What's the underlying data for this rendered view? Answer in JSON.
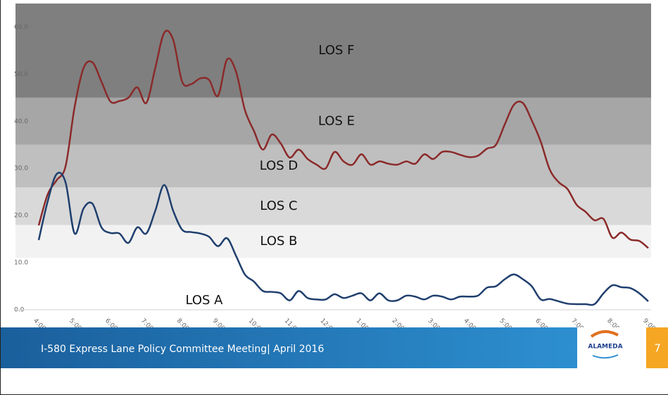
{
  "chart_data": {
    "type": "line",
    "categories": [
      "4:00:00",
      null,
      null,
      null,
      "5:00:00",
      null,
      null,
      null,
      "6:00:00",
      null,
      null,
      null,
      "7:00:00",
      null,
      null,
      null,
      "8:00:00",
      null,
      null,
      null,
      "9:00:00",
      null,
      null,
      null,
      "10:00:00",
      null,
      null,
      null,
      "11:00:00",
      null,
      null,
      null,
      "12:00:00",
      null,
      null,
      null,
      "1:00:00",
      null,
      null,
      null,
      "2:00:00",
      null,
      null,
      null,
      "3:00:00",
      null,
      null,
      null,
      "4:00:00",
      null,
      null,
      null,
      "5:00:00",
      null,
      null,
      null,
      "6:00:00",
      null,
      null,
      null,
      "7:00:00",
      null,
      null,
      null,
      "8:00:00",
      null,
      null,
      null,
      "9:00:00"
    ],
    "series": [
      {
        "color": "#8b2a2a",
        "values": [
          17.9,
          24.5,
          27.5,
          30.5,
          43,
          51.3,
          52.5,
          48.4,
          44.2,
          44.3,
          45,
          47.2,
          43.9,
          51.3,
          58.8,
          57.3,
          48.4,
          47.9,
          49.1,
          48.8,
          45.4,
          53.1,
          50.6,
          42.4,
          38,
          34,
          37.2,
          35.3,
          32.3,
          34,
          32,
          30.8,
          30,
          33.5,
          31.5,
          30.8,
          33,
          30.8,
          31.5,
          31,
          30.8,
          31.5,
          31,
          33,
          32,
          33.5,
          33.5,
          32.9,
          32.4,
          32.7,
          34.2,
          35,
          39.4,
          43.5,
          43.9,
          40.2,
          35.7,
          29.8,
          27.1,
          25.6,
          22.3,
          20.8,
          19,
          19.3,
          15.3,
          16.4,
          14.9,
          14.6,
          13.1
        ]
      },
      {
        "color": "#1f3f6e",
        "values": [
          14.8,
          23,
          28.8,
          27,
          16.2,
          21.5,
          22.5,
          17.5,
          16.3,
          16.2,
          14.2,
          17.5,
          16.2,
          21,
          26.5,
          21,
          17,
          16.5,
          16.2,
          15.5,
          13.5,
          15.2,
          11.5,
          7.5,
          6,
          4,
          3.8,
          3.5,
          2,
          4,
          2.5,
          2.2,
          2.2,
          3.3,
          2.5,
          3,
          3.5,
          2,
          3.5,
          2,
          2,
          3,
          2.8,
          2.2,
          3,
          2.8,
          2.2,
          2.8,
          2.8,
          3,
          4.7,
          5,
          6.5,
          7.5,
          6.5,
          5,
          2.2,
          2.3,
          1.8,
          1.3,
          1.2,
          1.2,
          1.2,
          3.5,
          5.2,
          4.8,
          4.6,
          3.5,
          1.8
        ]
      }
    ],
    "ylim": [
      0,
      65
    ],
    "yticks": [
      {
        "value": 0,
        "label": "0.0"
      },
      {
        "value": 10,
        "label": "10.0"
      },
      {
        "value": 20,
        "label": "20.0"
      },
      {
        "value": 30,
        "label": "30.0"
      },
      {
        "value": 40,
        "label": "40.0"
      },
      {
        "value": 50,
        "label": "50.0"
      },
      {
        "value": 60,
        "label": "60.0"
      }
    ],
    "bands": [
      {
        "label": "LOS A",
        "from": 0,
        "to": 11,
        "color": "#ffffff"
      },
      {
        "label": "LOS B",
        "from": 11,
        "to": 18,
        "color": "#f2f2f2"
      },
      {
        "label": "LOS C",
        "from": 18,
        "to": 26,
        "color": "#d9d9d9"
      },
      {
        "label": "LOS D",
        "from": 26,
        "to": 35,
        "color": "#bfbfbf"
      },
      {
        "label": "LOS E",
        "from": 35,
        "to": 45,
        "color": "#a6a6a6"
      },
      {
        "label": "LOS F",
        "from": 45,
        "to": 65,
        "color": "#7f7f7f"
      }
    ]
  },
  "footer": {
    "text": "I-580 Express Lane Policy Committee Meeting| April 2016",
    "logo": "ALAMEDA",
    "page": "7"
  }
}
